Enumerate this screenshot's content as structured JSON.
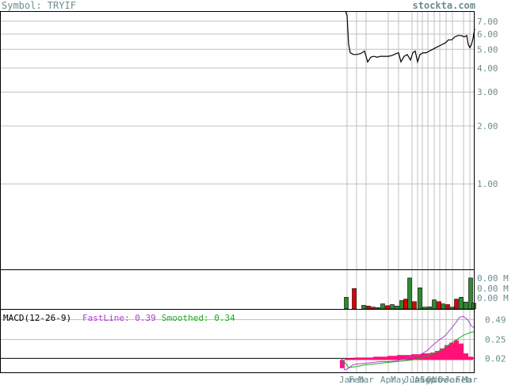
{
  "header": {
    "symbol_label": "Symbol: TRYIF",
    "site": "stockta.com"
  },
  "colors": {
    "frame": "#000000",
    "grid": "#c0c0c0",
    "axis_text": "#6b8e8e",
    "price_line": "#000000",
    "volume_up": "#2e8b2e",
    "volume_down": "#e00000",
    "fast_line": "#aa44cc",
    "smooth_line": "#22aa22",
    "histogram": "#ff1177"
  },
  "chart_data": [
    {
      "type": "line",
      "panel": "price",
      "scale": "log",
      "ylim": [
        0.36,
        7.9
      ],
      "yticks": [
        "7.00",
        "6.00",
        "5.00",
        "4.00",
        "3.00",
        "2.00",
        "1.00"
      ],
      "ytick_values": [
        7,
        6,
        5,
        4,
        3,
        2,
        1
      ],
      "x_tick_labels": [
        "Jan",
        "Feb",
        "Mar",
        "Apr",
        "May",
        "Jun",
        "Jul",
        "Aug",
        "Sep",
        "Oct",
        "Nov",
        "Dec",
        "Jan",
        "Feb",
        "Mar"
      ],
      "x_tick_positions": [
        438,
        450,
        462,
        490,
        503,
        520,
        527,
        533,
        540,
        548,
        555,
        563,
        571,
        585,
        593
      ],
      "x_span": [
        0,
        598
      ],
      "series": [
        {
          "x": [
            436,
            438,
            440,
            442,
            444,
            446,
            450,
            455,
            460,
            464,
            468,
            472,
            476,
            480,
            485,
            490,
            495,
            500,
            503,
            506,
            510,
            514,
            518,
            521,
            524,
            527,
            530,
            534,
            538,
            542,
            546,
            550,
            554,
            558,
            562,
            566,
            570,
            574,
            578,
            582,
            586,
            589,
            591,
            593,
            595,
            597,
            599
          ],
          "values": [
            7.9,
            7.5,
            5.3,
            4.8,
            4.75,
            4.7,
            4.7,
            4.75,
            4.9,
            4.3,
            4.55,
            4.6,
            4.55,
            4.6,
            4.6,
            4.6,
            4.65,
            4.75,
            4.8,
            4.3,
            4.6,
            4.7,
            4.4,
            4.8,
            4.9,
            4.3,
            4.7,
            4.8,
            4.8,
            4.9,
            5.0,
            5.1,
            5.2,
            5.3,
            5.4,
            5.6,
            5.6,
            5.8,
            5.9,
            5.9,
            5.8,
            5.9,
            5.3,
            5.1,
            5.3,
            5.7,
            6.4
          ]
        }
      ]
    },
    {
      "type": "bar",
      "panel": "volume",
      "yticks": [
        "0.00 M",
        "0.00 M",
        "0.00 M"
      ],
      "x": [
        437,
        447,
        459,
        465,
        471,
        477,
        483,
        489,
        495,
        501,
        507,
        512,
        517,
        523,
        530,
        536,
        542,
        548,
        554,
        559,
        565,
        571,
        576,
        582,
        588,
        594,
        598
      ],
      "values": [
        0.32,
        0.56,
        0.1,
        0.08,
        0.05,
        0.04,
        0.14,
        0.09,
        0.12,
        0.08,
        0.23,
        0.27,
        0.85,
        0.2,
        0.58,
        0.05,
        0.06,
        0.25,
        0.2,
        0.14,
        0.12,
        0.05,
        0.27,
        0.32,
        0.19,
        0.85,
        0.16
      ],
      "direction": [
        "up",
        "down",
        "up",
        "down",
        "down",
        "up",
        "up",
        "down",
        "up",
        "up",
        "up",
        "down",
        "up",
        "down",
        "up",
        "up",
        "up",
        "up",
        "down",
        "up",
        "down",
        "up",
        "down",
        "up",
        "up",
        "up",
        "up"
      ]
    },
    {
      "type": "line",
      "panel": "macd",
      "label": "MACD(12-26-9)",
      "fast_label": "FastLine: 0.39",
      "smooth_label": "Smoothed: 0.34",
      "yticks": [
        "0.49",
        "0.25",
        "0.02"
      ],
      "ytick_values": [
        0.49,
        0.25,
        0.02
      ],
      "ylim": [
        -0.15,
        0.62
      ],
      "series": [
        {
          "name": "FastLine",
          "x": [
            431,
            435,
            440,
            445,
            450,
            460,
            470,
            480,
            490,
            500,
            505,
            510,
            515,
            520,
            525,
            530,
            535,
            540,
            545,
            550,
            555,
            560,
            565,
            570,
            575,
            580,
            585,
            590,
            595,
            599
          ],
          "values": [
            0.02,
            -0.12,
            -0.1,
            -0.06,
            -0.05,
            -0.04,
            -0.03,
            -0.02,
            -0.02,
            -0.01,
            0.0,
            0.01,
            0.03,
            0.04,
            0.05,
            0.06,
            0.09,
            0.12,
            0.17,
            0.21,
            0.25,
            0.28,
            0.33,
            0.39,
            0.45,
            0.52,
            0.53,
            0.49,
            0.41,
            0.39
          ]
        },
        {
          "name": "Smoothed",
          "x": [
            431,
            440,
            450,
            460,
            470,
            480,
            490,
            500,
            510,
            520,
            530,
            540,
            550,
            560,
            570,
            575,
            580,
            585,
            590,
            595,
            599
          ],
          "values": [
            0.02,
            -0.09,
            -0.08,
            -0.06,
            -0.05,
            -0.04,
            -0.03,
            -0.02,
            -0.01,
            0.0,
            0.02,
            0.05,
            0.09,
            0.14,
            0.21,
            0.24,
            0.27,
            0.3,
            0.32,
            0.34,
            0.34
          ]
        }
      ],
      "histogram": {
        "x": [
          432,
          438,
          444,
          450,
          456,
          462,
          468,
          474,
          480,
          486,
          492,
          498,
          504,
          510,
          516,
          522,
          528,
          534,
          540,
          546,
          552,
          558,
          564,
          570,
          576,
          582,
          588,
          594
        ],
        "values": [
          -0.1,
          0.02,
          0.02,
          0.03,
          0.03,
          0.03,
          0.03,
          0.04,
          0.04,
          0.04,
          0.05,
          0.05,
          0.06,
          0.06,
          0.06,
          0.07,
          0.07,
          0.08,
          0.08,
          0.09,
          0.11,
          0.14,
          0.18,
          0.21,
          0.24,
          0.2,
          0.08,
          0.04
        ]
      }
    }
  ]
}
